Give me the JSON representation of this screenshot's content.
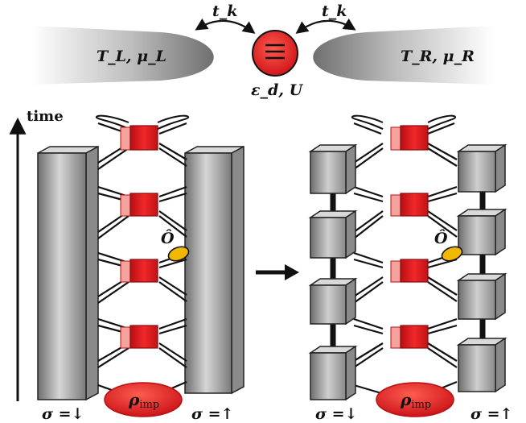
{
  "top": {
    "left_reservoir_label": "T_L, μ_L",
    "right_reservoir_label": "T_R, μ_R",
    "hopping_left": "t_k",
    "hopping_right": "t_k",
    "dot_label": "ε_d, U"
  },
  "time_axis_label": "time",
  "operator_label": "Ô",
  "left_network": {
    "sigma_down_label": "σ =↓",
    "sigma_up_label": "σ =↑",
    "rho_label": "ρ",
    "rho_subscript": "imp"
  },
  "right_network": {
    "sigma_down_label": "σ =↓",
    "sigma_up_label": "σ =↑",
    "rho_label": "ρ",
    "rho_subscript": "imp"
  },
  "colors": {
    "red": "#e0191c",
    "red_light": "#f3a39a",
    "gray_dark": "#7d7d7d",
    "gray_light": "#d8d8d8",
    "yellow": "#f2b800"
  }
}
